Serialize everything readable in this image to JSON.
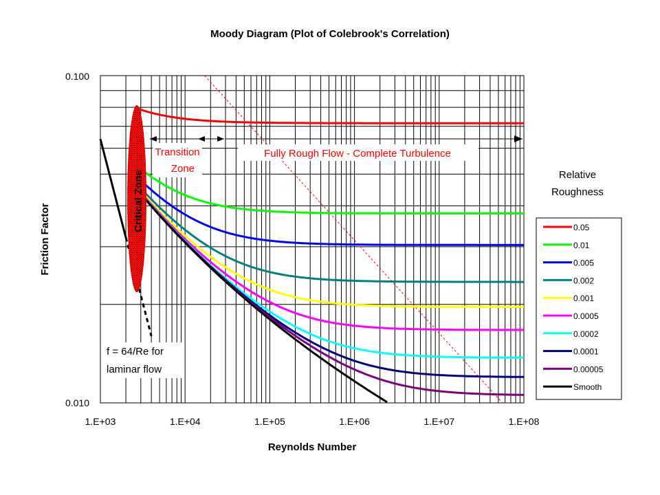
{
  "chart_data": {
    "type": "line",
    "title": "Moody Diagram (Plot of Colebrook's Correlation)",
    "xlabel": "Reynolds Number",
    "ylabel": "Friction Factor",
    "xscale": "log",
    "yscale": "log",
    "xlim": [
      1000,
      100000000
    ],
    "ylim": [
      0.01,
      0.1
    ],
    "x_ticks": [
      "1.E+03",
      "1.E+04",
      "1.E+05",
      "1.E+06",
      "1.E+07",
      "1.E+08"
    ],
    "y_ticks": [
      "0.100",
      "0.010"
    ],
    "grid": true,
    "legend": {
      "title_line1": "Relative",
      "title_line2": "Roughness",
      "placement": "right"
    },
    "series": [
      {
        "name": "0.05",
        "color": "#ff0000",
        "epsilon": 0.05
      },
      {
        "name": "0.01",
        "color": "#00ff00",
        "epsilon": 0.01
      },
      {
        "name": "0.005",
        "color": "#0000ff",
        "epsilon": 0.005
      },
      {
        "name": "0.002",
        "color": "#008080",
        "epsilon": 0.002
      },
      {
        "name": "0.001",
        "color": "#ffff00",
        "epsilon": 0.001
      },
      {
        "name": "0.0005",
        "color": "#ff00ff",
        "epsilon": 0.0005
      },
      {
        "name": "0.0002",
        "color": "#00ffff",
        "epsilon": 0.0002
      },
      {
        "name": "0.0001",
        "color": "#000080",
        "epsilon": 0.0001
      },
      {
        "name": "0.00005",
        "color": "#800080",
        "epsilon": 5e-05
      },
      {
        "name": "Smooth",
        "color": "#000000",
        "epsilon": 0
      }
    ],
    "laminar": {
      "x": [
        1000,
        4000
      ],
      "y": [
        0.064,
        0.016
      ]
    },
    "annotations": {
      "critical_zone": "Critical Zone",
      "transition_line1": "Transition",
      "transition_line2": "Zone",
      "fully_rough": "Fully Rough Flow - Complete Turbulence",
      "laminar_line1": "f = 64/Re for",
      "laminar_line2": "laminar flow"
    }
  }
}
